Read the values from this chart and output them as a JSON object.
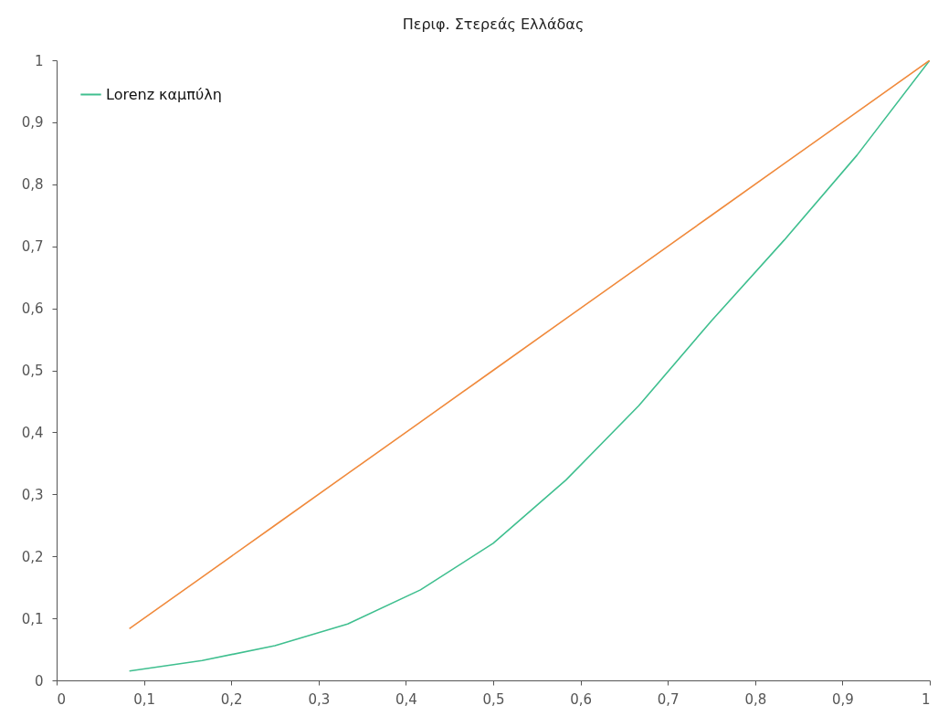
{
  "chart_data": {
    "type": "line",
    "title": "Περιφ. Στερεάς Ελλάδας",
    "x": [
      0.0833,
      0.1667,
      0.25,
      0.3333,
      0.4167,
      0.5,
      0.5833,
      0.6667,
      0.75,
      0.8333,
      0.9167,
      1
    ],
    "series": [
      {
        "name": "Lorenz καμπύλη",
        "color": "#3fbf8f",
        "values": [
          0.015,
          0.032,
          0.056,
          0.091,
          0.146,
          0.221,
          0.323,
          0.443,
          0.58,
          0.71,
          0.847,
          1
        ]
      },
      {
        "color": "#f08a3c",
        "values": [
          0.0833,
          0.1667,
          0.25,
          0.3333,
          0.4167,
          0.5,
          0.5833,
          0.6667,
          0.75,
          0.8333,
          0.9167,
          1
        ]
      }
    ],
    "xlim": [
      0,
      1
    ],
    "ylim": [
      0,
      1
    ],
    "xticks": [
      0,
      {
        "value": 0.1,
        "label": "0,1"
      },
      {
        "value": 0.2,
        "label": "0,2"
      },
      {
        "value": 0.3,
        "label": "0,3"
      },
      {
        "value": 0.4,
        "label": "0,4"
      },
      {
        "value": 0.5,
        "label": "0,5"
      },
      {
        "value": 0.6,
        "label": "0,6"
      },
      {
        "value": 0.7,
        "label": "0,7"
      },
      {
        "value": 0.8,
        "label": "0,8"
      },
      {
        "value": 0.9,
        "label": "0,9"
      },
      1
    ],
    "yticks": [
      0,
      {
        "value": 0.1,
        "label": "0,1"
      },
      {
        "value": 0.2,
        "label": "0,2"
      },
      {
        "value": 0.3,
        "label": "0,3"
      },
      {
        "value": 0.4,
        "label": "0,4"
      },
      {
        "value": 0.5,
        "label": "0,5"
      },
      {
        "value": 0.6,
        "label": "0,6"
      },
      {
        "value": 0.7,
        "label": "0,7"
      },
      {
        "value": 0.8,
        "label": "0,8"
      },
      {
        "value": 0.9,
        "label": "0,9"
      },
      1
    ],
    "legend": "top left",
    "grid": false,
    "marker": "none"
  }
}
